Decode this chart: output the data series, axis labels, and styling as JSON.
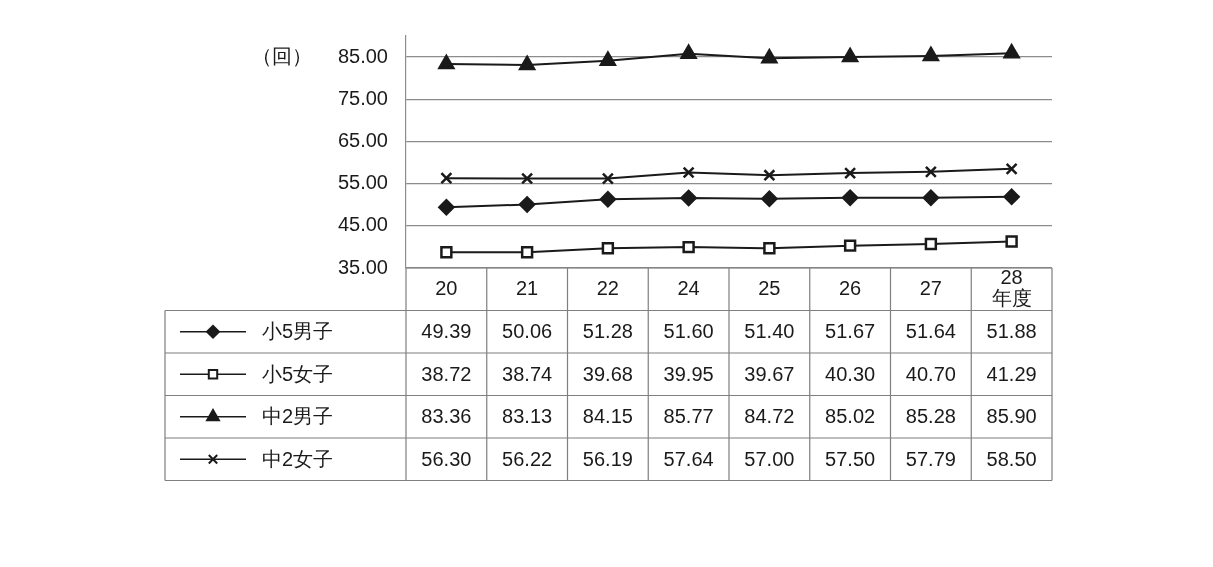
{
  "chart_data": {
    "type": "line",
    "ylabel": "（回）",
    "categories": [
      "20",
      "21",
      "22",
      "24",
      "25",
      "26",
      "27",
      "28\n年度"
    ],
    "ylim": [
      35,
      90
    ],
    "yticks": [
      {
        "value": 35,
        "label": "35.00"
      },
      {
        "value": 45,
        "label": "45.00"
      },
      {
        "value": 55,
        "label": "55.00"
      },
      {
        "value": 65,
        "label": "65.00"
      },
      {
        "value": 75,
        "label": "75.00"
      },
      {
        "value": 85,
        "label": "85.00"
      }
    ],
    "grid": "y",
    "legend": "bottom",
    "line_style": "solid",
    "series": [
      {
        "name": "小5男子",
        "color": "#1a1a1a",
        "marker": "diamond",
        "values": [
          49.39,
          50.06,
          51.28,
          51.6,
          51.4,
          51.67,
          51.64,
          51.88
        ],
        "value_labels": [
          "49.39",
          "50.06",
          "51.28",
          "51.60",
          "51.40",
          "51.67",
          "51.64",
          "51.88"
        ]
      },
      {
        "name": "小5女子",
        "color": "#1a1a1a",
        "marker": "square",
        "values": [
          38.72,
          38.74,
          39.68,
          39.95,
          39.67,
          40.3,
          40.7,
          41.29
        ],
        "value_labels": [
          "38.72",
          "38.74",
          "39.68",
          "39.95",
          "39.67",
          "40.30",
          "40.70",
          "41.29"
        ]
      },
      {
        "name": "中2男子",
        "color": "#1a1a1a",
        "marker": "triangle",
        "values": [
          83.36,
          83.13,
          84.15,
          85.77,
          84.72,
          85.02,
          85.28,
          85.9
        ],
        "value_labels": [
          "83.36",
          "83.13",
          "84.15",
          "85.77",
          "84.72",
          "85.02",
          "85.28",
          "85.90"
        ]
      },
      {
        "name": "中2女子",
        "color": "#1a1a1a",
        "marker": "cross",
        "values": [
          56.3,
          56.22,
          56.19,
          57.64,
          57.0,
          57.5,
          57.79,
          58.5
        ],
        "value_labels": [
          "56.30",
          "56.22",
          "56.19",
          "57.64",
          "57.00",
          "57.50",
          "57.79",
          "58.50"
        ]
      }
    ]
  }
}
